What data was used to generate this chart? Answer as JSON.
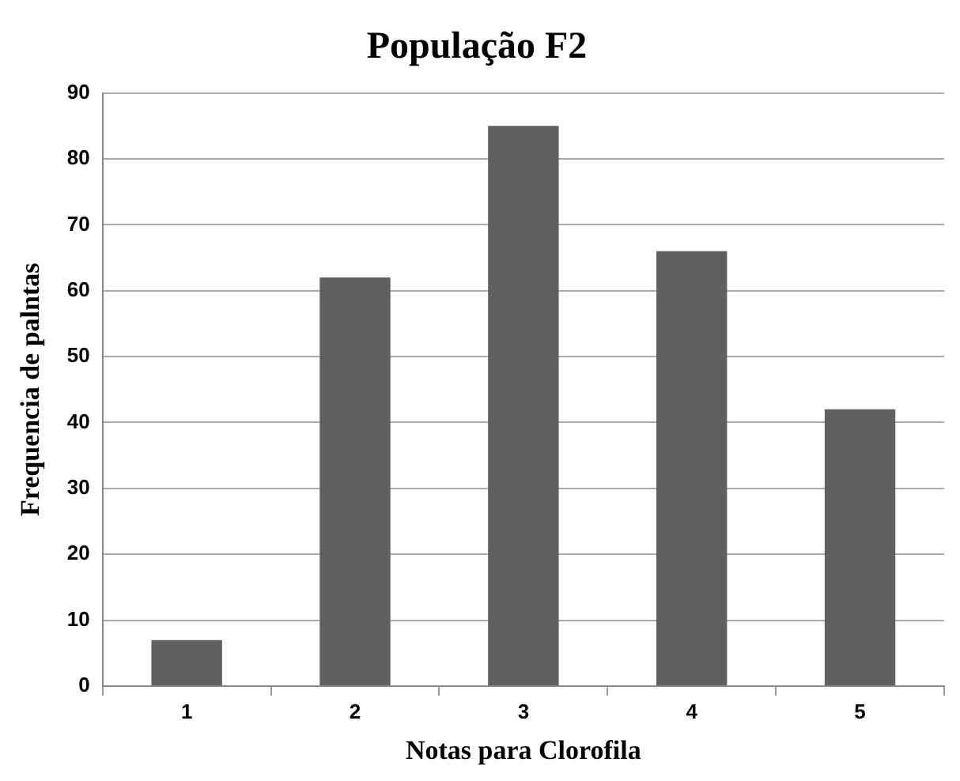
{
  "chart_data": {
    "type": "bar",
    "title": "População F2",
    "xlabel": "Notas para Clorofila",
    "ylabel": "Frequencia de palntas",
    "categories": [
      "1",
      "2",
      "3",
      "4",
      "5"
    ],
    "values": [
      7,
      62,
      85,
      66,
      42
    ],
    "color": "#606060",
    "ylim": [
      0,
      90
    ],
    "yticks": [
      0,
      10,
      20,
      30,
      40,
      50,
      60,
      70,
      80,
      90
    ],
    "grid": "y"
  }
}
